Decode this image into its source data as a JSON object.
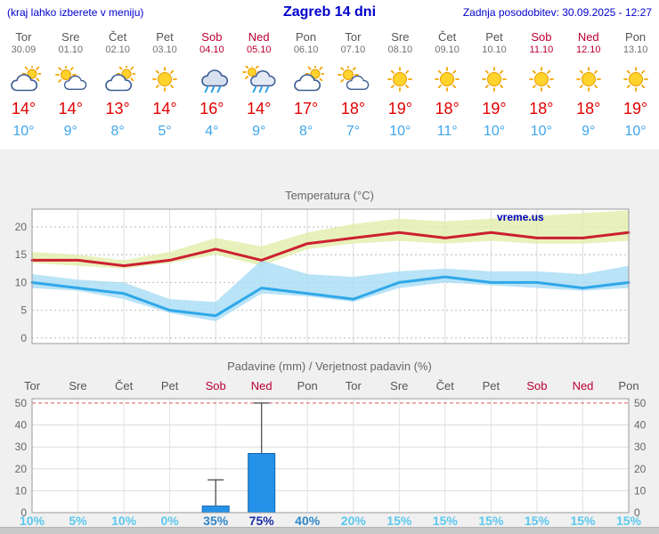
{
  "header": {
    "hint": "(kraj lahko izberete v meniju)",
    "title": "Zagreb 14 dni",
    "updated": "Zadnja posodobitev: 30.09.2025 - 12:27"
  },
  "days": [
    {
      "name": "Tor",
      "date": "30.09",
      "weekend": false,
      "icon": "cloud-sun",
      "tmax_label": "14°",
      "tmin_label": "10°"
    },
    {
      "name": "Sre",
      "date": "01.10",
      "weekend": false,
      "icon": "sun-cloud",
      "tmax_label": "14°",
      "tmin_label": "9°"
    },
    {
      "name": "Čet",
      "date": "02.10",
      "weekend": false,
      "icon": "cloud-sun",
      "tmax_label": "13°",
      "tmin_label": "8°"
    },
    {
      "name": "Pet",
      "date": "03.10",
      "weekend": false,
      "icon": "sun",
      "tmax_label": "14°",
      "tmin_label": "5°"
    },
    {
      "name": "Sob",
      "date": "04.10",
      "weekend": true,
      "icon": "rain",
      "tmax_label": "16°",
      "tmin_label": "4°"
    },
    {
      "name": "Ned",
      "date": "05.10",
      "weekend": true,
      "icon": "rain-sun",
      "tmax_label": "14°",
      "tmin_label": "9°"
    },
    {
      "name": "Pon",
      "date": "06.10",
      "weekend": false,
      "icon": "cloud-sun",
      "tmax_label": "17°",
      "tmin_label": "8°"
    },
    {
      "name": "Tor",
      "date": "07.10",
      "weekend": false,
      "icon": "sun-cloud",
      "tmax_label": "18°",
      "tmin_label": "7°"
    },
    {
      "name": "Sre",
      "date": "08.10",
      "weekend": false,
      "icon": "sun",
      "tmax_label": "19°",
      "tmin_label": "10°"
    },
    {
      "name": "Čet",
      "date": "09.10",
      "weekend": false,
      "icon": "sun",
      "tmax_label": "18°",
      "tmin_label": "11°"
    },
    {
      "name": "Pet",
      "date": "10.10",
      "weekend": false,
      "icon": "sun",
      "tmax_label": "19°",
      "tmin_label": "10°"
    },
    {
      "name": "Sob",
      "date": "11.10",
      "weekend": true,
      "icon": "sun",
      "tmax_label": "18°",
      "tmin_label": "10°"
    },
    {
      "name": "Ned",
      "date": "12.10",
      "weekend": true,
      "icon": "sun",
      "tmax_label": "18°",
      "tmin_label": "9°"
    },
    {
      "name": "Pon",
      "date": "13.10",
      "weekend": false,
      "icon": "sun",
      "tmax_label": "19°",
      "tmin_label": "10°"
    }
  ],
  "chart_data": [
    {
      "type": "line",
      "title": "Temperatura (°C)",
      "watermark": "vreme.us",
      "x_labels": [
        "Tor 30.09",
        "Sre 01.10",
        "Čet 02.10",
        "Pet 03.10",
        "Sob 04.10",
        "Ned 05.10",
        "Pon 06.10",
        "Tor 07.10",
        "Sre 08.10",
        "Čet 09.10",
        "Pet 10.10",
        "Sob 11.10",
        "Ned 12.10",
        "Pon 13.10"
      ],
      "series": [
        {
          "name": "max-temperature",
          "color": "#cc2030",
          "values": [
            14,
            14,
            13,
            14,
            16,
            14,
            17,
            18,
            19,
            18,
            19,
            18,
            18,
            19
          ]
        },
        {
          "name": "min-temperature",
          "color": "#2fa8e8",
          "values": [
            10,
            9,
            8,
            5,
            4,
            9,
            8,
            7,
            10,
            11,
            10,
            10,
            9,
            10
          ]
        }
      ],
      "bands": [
        {
          "name": "max-range",
          "color": "#e2eeab",
          "upper": [
            15.5,
            15,
            14,
            15.5,
            18,
            16.5,
            19,
            20.5,
            21.5,
            21,
            21.5,
            22,
            22.5,
            23
          ],
          "lower": [
            13.5,
            13,
            12.5,
            13.5,
            15,
            13,
            16,
            17,
            17.5,
            17,
            17.5,
            17,
            17,
            17.5
          ]
        },
        {
          "name": "min-range",
          "color": "#a8dcf5",
          "upper": [
            11.5,
            10.5,
            10,
            7,
            6.5,
            14,
            11.5,
            11,
            12,
            12.5,
            12,
            12,
            11.5,
            13
          ],
          "lower": [
            9,
            8.5,
            7,
            4.5,
            3,
            8,
            7.5,
            6.5,
            9,
            10,
            9.5,
            9,
            8.5,
            9
          ]
        }
      ],
      "ylim": [
        -1,
        23.2
      ],
      "yticks": [
        0,
        5,
        10,
        15,
        20
      ],
      "grid": true,
      "legend_position": "none"
    },
    {
      "type": "bar",
      "title": "Padavine (mm) / Verjetnost padavin (%)",
      "bar_color": "#2492e8",
      "values": [
        0,
        0,
        0,
        0,
        3,
        27,
        0,
        0,
        0,
        0,
        0,
        0,
        0,
        0
      ],
      "whisker_max": [
        0,
        0,
        0,
        0,
        15,
        50,
        0,
        0,
        0,
        0,
        0,
        0,
        0,
        0
      ],
      "probabilities": [
        {
          "value": "10%",
          "level": "low"
        },
        {
          "value": "5%",
          "level": "low"
        },
        {
          "value": "10%",
          "level": "low"
        },
        {
          "value": "0%",
          "level": "low"
        },
        {
          "value": "35%",
          "level": "mid"
        },
        {
          "value": "75%",
          "level": "high"
        },
        {
          "value": "40%",
          "level": "mid"
        },
        {
          "value": "20%",
          "level": "low"
        },
        {
          "value": "15%",
          "level": "low"
        },
        {
          "value": "15%",
          "level": "low"
        },
        {
          "value": "15%",
          "level": "low"
        },
        {
          "value": "15%",
          "level": "low"
        },
        {
          "value": "15%",
          "level": "low"
        },
        {
          "value": "15%",
          "level": "low"
        }
      ],
      "ylim": [
        0,
        52
      ],
      "yticks": [
        0,
        10,
        20,
        30,
        40,
        50
      ],
      "grid": true
    }
  ],
  "colors": {
    "accent_blue": "#0000cc",
    "weekend_red": "#bb0033",
    "tmax_red": "#e00000",
    "tmin_blue": "#3fa5ec",
    "prob_low": "#5bc8ee",
    "prob_mid": "#2e86c8",
    "prob_high": "#1a2fa8",
    "rain_limit_red": "#e05a5a"
  }
}
